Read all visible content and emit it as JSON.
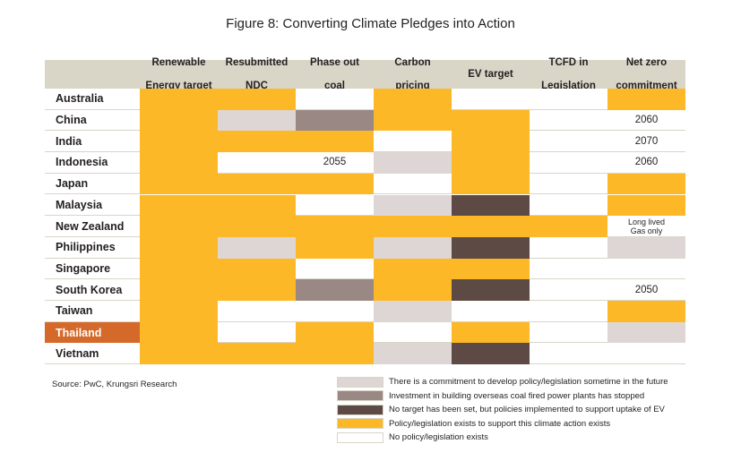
{
  "title": "Figure 8: Converting Climate Pledges into Action",
  "source": "Source: PwC, Krungsri Research",
  "colors": {
    "header_bg": "#d9d5c7",
    "highlight_row": "#d4692a",
    "policy_exists": "#fdb827",
    "commitment": "#ded6d4",
    "coal_stopped": "#998883",
    "ev_policies": "#5d4a44",
    "none": "#ffffff",
    "row_line": "#d9d5c7"
  },
  "chart_data": {
    "type": "table",
    "columns": [
      "Renewable\nEnergy target",
      "Resubmitted\nNDC",
      "Phase out\ncoal",
      "Carbon\npricing",
      "EV target",
      "TCFD in\nLegislation",
      "Net zero\ncommitment"
    ],
    "highlight_row": "Thailand",
    "rows": [
      {
        "country": "Australia",
        "status": [
          "policy",
          "policy",
          "none",
          "policy",
          "none",
          "none",
          "policy"
        ],
        "text": [
          "",
          "",
          "",
          "",
          "",
          "",
          ""
        ]
      },
      {
        "country": "China",
        "status": [
          "policy",
          "commitment",
          "coal",
          "policy",
          "policy",
          "none",
          "none"
        ],
        "text": [
          "",
          "",
          "",
          "",
          "",
          "",
          "2060"
        ]
      },
      {
        "country": "India",
        "status": [
          "policy",
          "policy",
          "policy",
          "none",
          "policy",
          "none",
          "none"
        ],
        "text": [
          "",
          "",
          "",
          "",
          "",
          "",
          "2070"
        ]
      },
      {
        "country": "Indonesia",
        "status": [
          "policy",
          "none",
          "none",
          "commitment",
          "policy",
          "none",
          "none"
        ],
        "text": [
          "",
          "",
          "2055",
          "",
          "",
          "",
          "2060"
        ]
      },
      {
        "country": "Japan",
        "status": [
          "policy",
          "policy",
          "policy",
          "none",
          "policy",
          "none",
          "policy"
        ],
        "text": [
          "",
          "",
          "",
          "",
          "",
          "",
          ""
        ]
      },
      {
        "country": "Malaysia",
        "status": [
          "policy",
          "policy",
          "none",
          "commitment",
          "ev",
          "none",
          "policy"
        ],
        "text": [
          "",
          "",
          "",
          "",
          "",
          "",
          ""
        ]
      },
      {
        "country": "New Zealand",
        "status": [
          "policy",
          "policy",
          "policy",
          "policy",
          "policy",
          "policy",
          "none"
        ],
        "text": [
          "",
          "",
          "",
          "",
          "",
          "",
          "Long lived\nGas only"
        ]
      },
      {
        "country": "Philippines",
        "status": [
          "policy",
          "commitment",
          "policy",
          "commitment",
          "ev",
          "none",
          "commitment"
        ],
        "text": [
          "",
          "",
          "",
          "",
          "",
          "",
          ""
        ]
      },
      {
        "country": "Singapore",
        "status": [
          "policy",
          "policy",
          "none",
          "policy",
          "policy",
          "none",
          "none"
        ],
        "text": [
          "",
          "",
          "",
          "",
          "",
          "",
          ""
        ]
      },
      {
        "country": "South Korea",
        "status": [
          "policy",
          "policy",
          "coal",
          "policy",
          "ev",
          "none",
          "none"
        ],
        "text": [
          "",
          "",
          "",
          "",
          "",
          "",
          "2050"
        ]
      },
      {
        "country": "Taiwan",
        "status": [
          "policy",
          "none",
          "none",
          "commitment",
          "none",
          "none",
          "policy"
        ],
        "text": [
          "",
          "",
          "",
          "",
          "",
          "",
          ""
        ]
      },
      {
        "country": "Thailand",
        "status": [
          "policy",
          "none",
          "policy",
          "none",
          "policy",
          "none",
          "commitment"
        ],
        "text": [
          "",
          "",
          "",
          "",
          "",
          "",
          ""
        ]
      },
      {
        "country": "Vietnam",
        "status": [
          "policy",
          "policy",
          "policy",
          "commitment",
          "ev",
          "none",
          "none"
        ],
        "text": [
          "",
          "",
          "",
          "",
          "",
          "",
          ""
        ]
      }
    ]
  },
  "legend": [
    {
      "key": "commitment",
      "label": "There is a commitment to develop policy/legislation sometime in the future"
    },
    {
      "key": "coal",
      "label": "Investment in building overseas coal fired power plants has stopped"
    },
    {
      "key": "ev",
      "label": "No target has been set, but policies implemented to support uptake of EV"
    },
    {
      "key": "policy",
      "label": "Policy/legislation exists to support this climate action exists"
    },
    {
      "key": "none",
      "label": "No policy/legislation exists"
    }
  ]
}
